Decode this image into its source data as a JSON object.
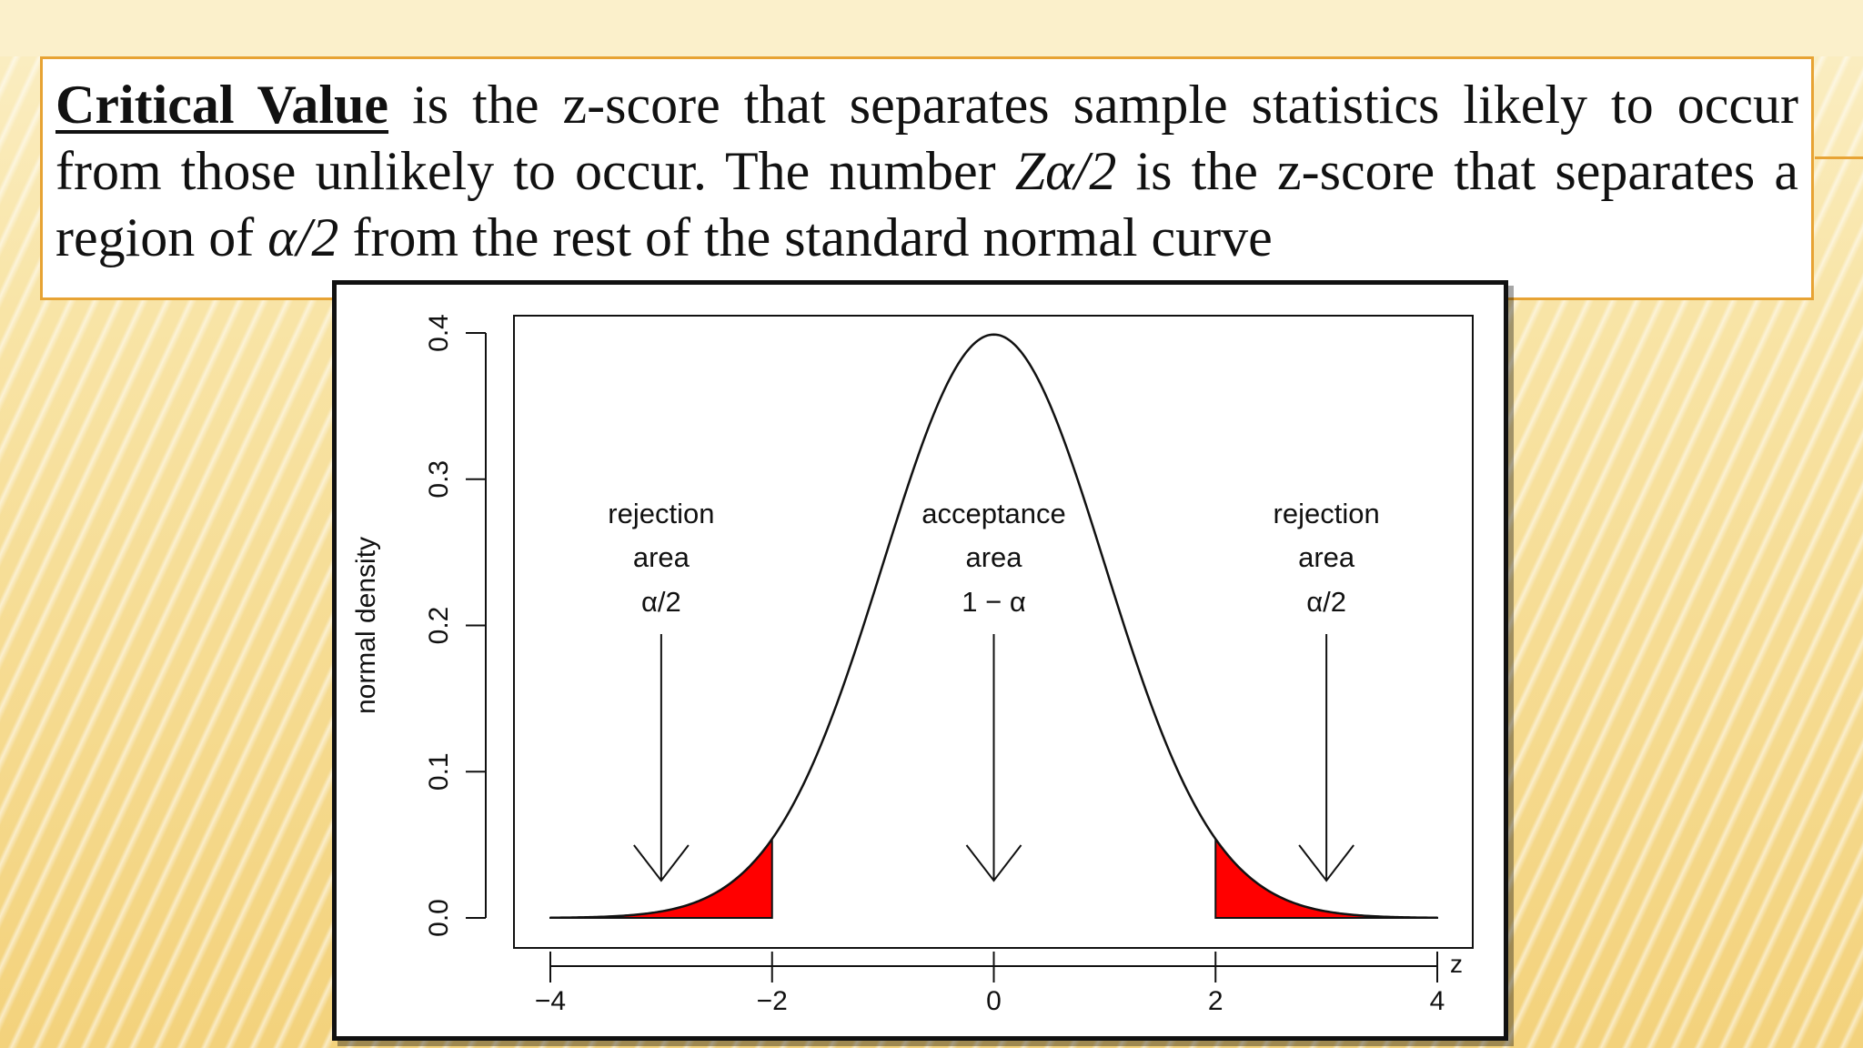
{
  "slide": {
    "term": "Critical Value",
    "definition_part1": " is the z-score that separates sample statistics likely to occur from those unlikely to occur. The number ",
    "symbol_z": "Zα/2",
    "definition_part2": " is the z-score that separates a region of ",
    "symbol_alpha": "α/2",
    "definition_part3": " from the rest of the standard normal curve"
  },
  "colors": {
    "box_border": "#e7a334",
    "rejection_fill": "#ff0000",
    "curve": "#111111"
  },
  "chart_data": {
    "type": "area",
    "function": "standard normal density",
    "ylabel": "normal density",
    "xlabel": "z",
    "xlim": [
      -4,
      4
    ],
    "ylim": [
      0,
      0.4
    ],
    "x_ticks": [
      "−4",
      "−2",
      "0",
      "2",
      "4"
    ],
    "x_tick_values": [
      -4,
      -2,
      0,
      2,
      4
    ],
    "y_ticks": [
      "0.0",
      "0.1",
      "0.2",
      "0.3",
      "0.4"
    ],
    "y_tick_values": [
      0,
      0.1,
      0.2,
      0.3,
      0.4
    ],
    "grid": false,
    "shaded_regions": [
      {
        "from": -4,
        "to": -2,
        "label": "rejection area left"
      },
      {
        "from": 2,
        "to": 4,
        "label": "rejection area right"
      }
    ],
    "annotations": [
      {
        "x": -3,
        "lines": [
          "rejection",
          "area",
          "α/2"
        ]
      },
      {
        "x": 0,
        "lines": [
          "acceptance",
          "area",
          "1 − α"
        ]
      },
      {
        "x": 3,
        "lines": [
          "rejection",
          "area",
          "α/2"
        ]
      }
    ]
  }
}
